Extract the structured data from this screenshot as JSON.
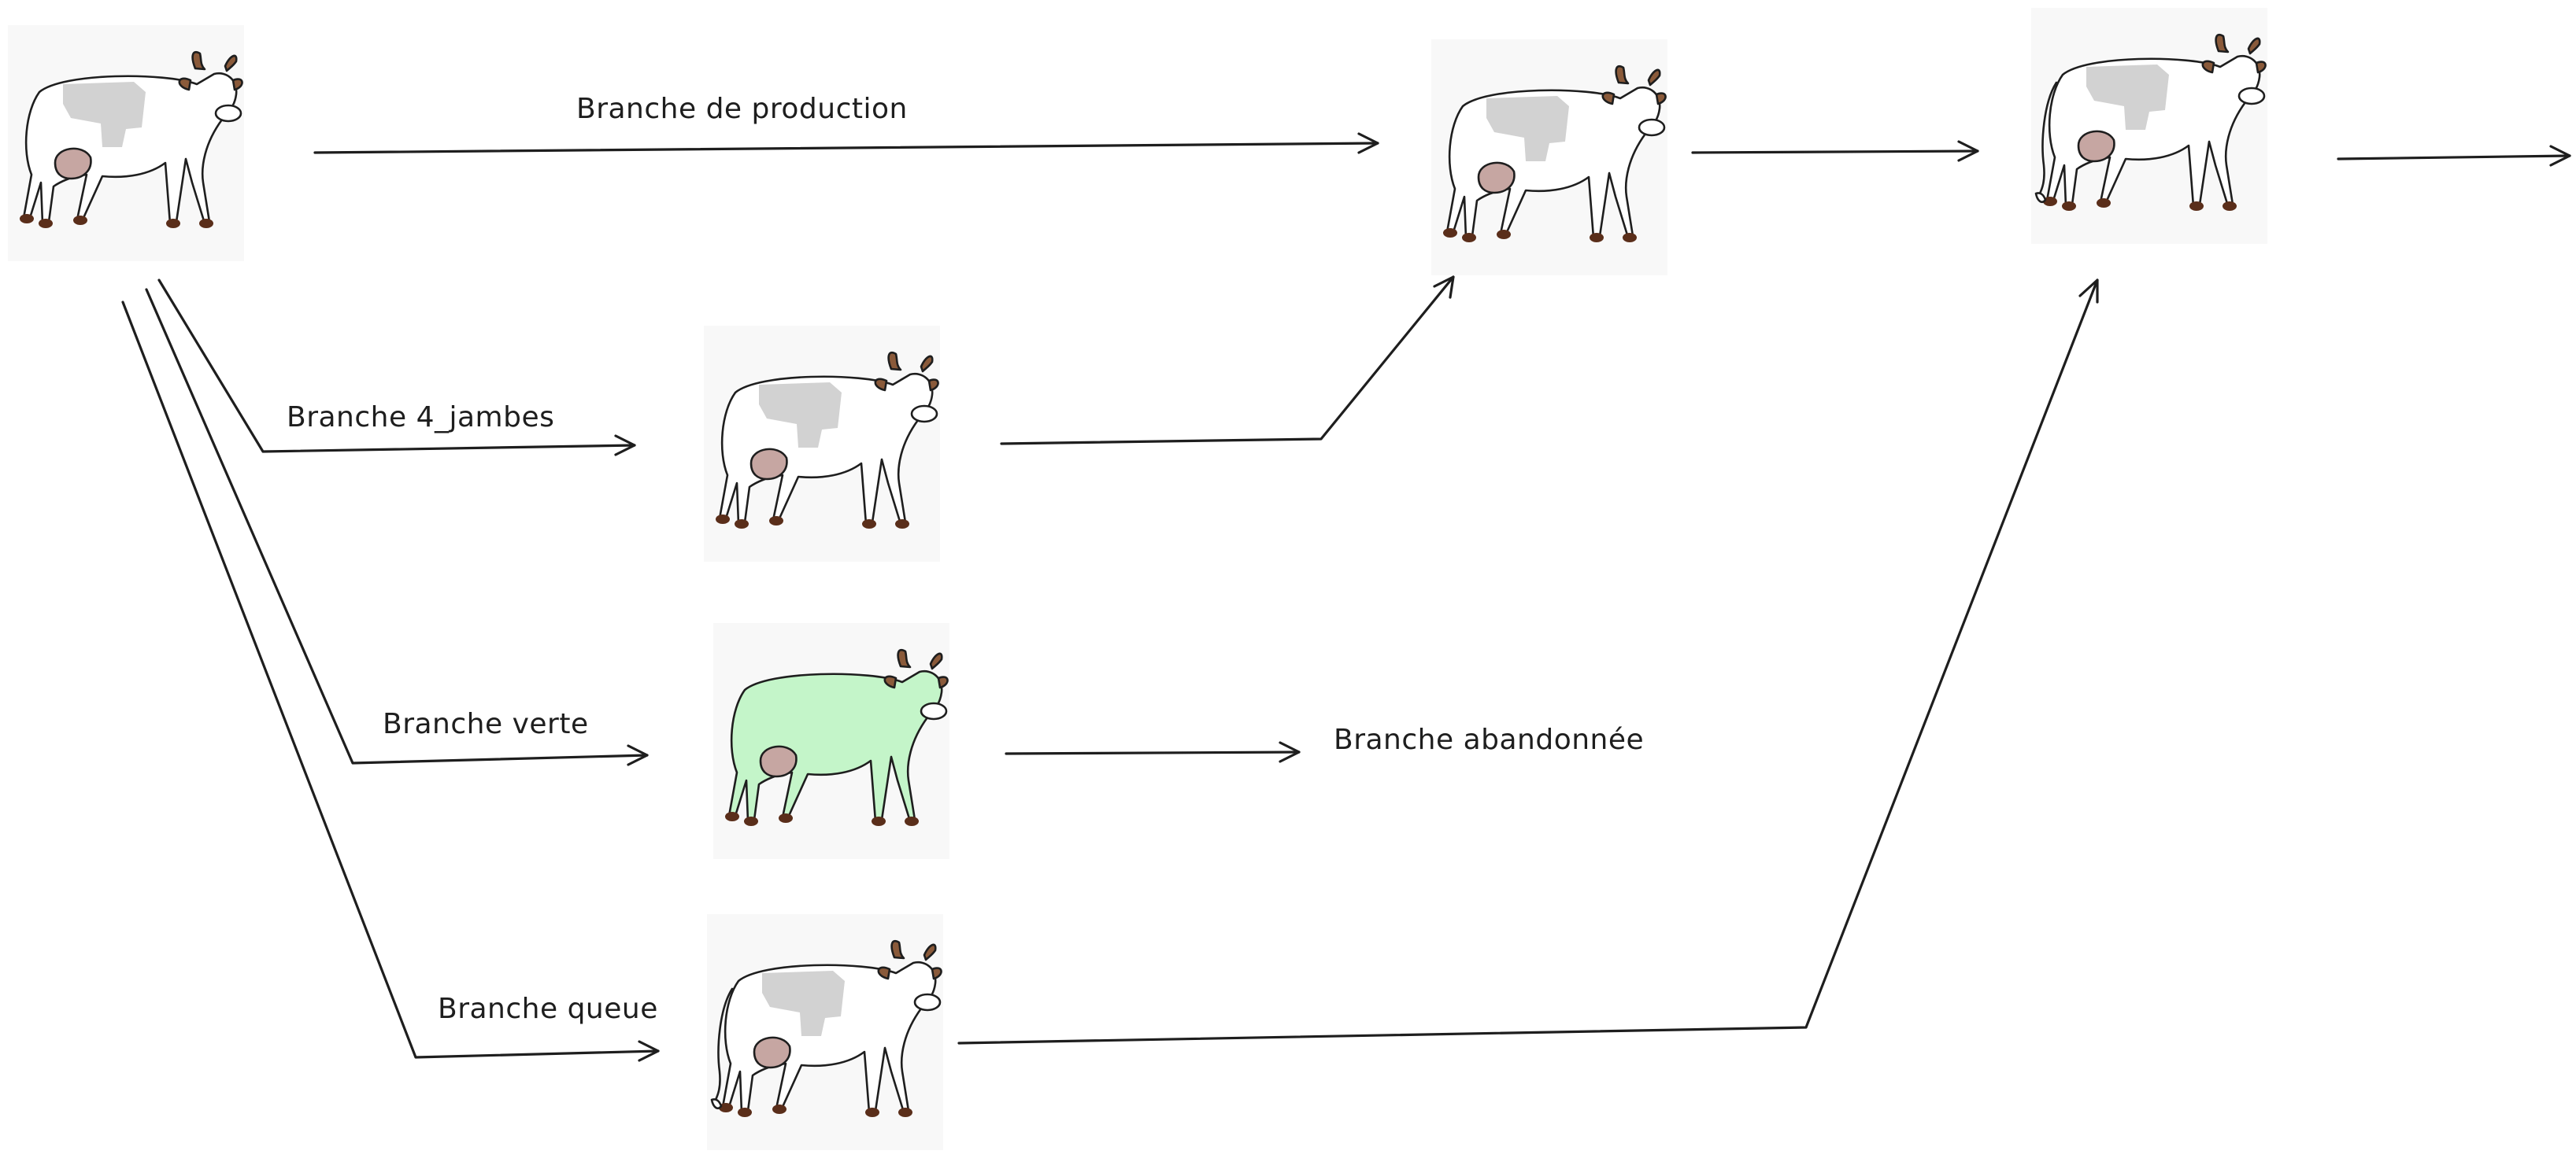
{
  "labels": {
    "production": "Branche de production",
    "four_legs": "Branche 4_jambes",
    "green": "Branche verte",
    "tail": "Branche queue",
    "abandoned": "Branche abandonnée"
  },
  "nodes": [
    {
      "id": "origin",
      "variant": "plain"
    },
    {
      "id": "prod-1",
      "variant": "plain"
    },
    {
      "id": "prod-2",
      "variant": "tail"
    },
    {
      "id": "four-legs",
      "variant": "plain"
    },
    {
      "id": "green",
      "variant": "green"
    },
    {
      "id": "tail",
      "variant": "tail"
    }
  ],
  "colors": {
    "stroke": "#1e1e1e",
    "green_fill": "#c4f5c9",
    "spot": "#d2d2d2",
    "udder": "#c6a6a2",
    "horn": "#8a5a3a",
    "hoof": "#5a2e1a"
  }
}
